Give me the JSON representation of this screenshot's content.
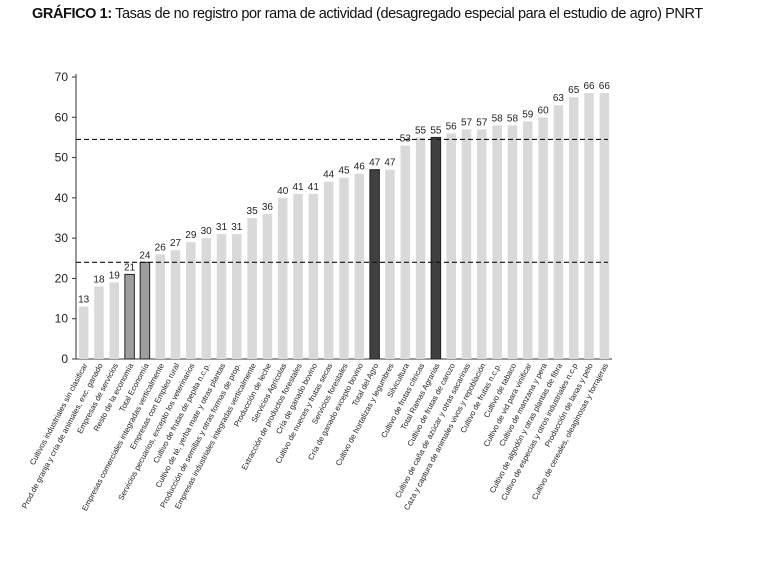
{
  "title": {
    "prefix": "GRÁFICO 1:",
    "text": "Tasas de no registro por rama de actividad (desagregado especial para el estudio de agro) PNRT"
  },
  "chart_data": {
    "type": "bar",
    "ylim": [
      0,
      70
    ],
    "yticks": [
      0,
      10,
      20,
      30,
      40,
      50,
      60,
      70
    ],
    "reference_lines": [
      24,
      54.5
    ],
    "colors": {
      "default": "#d9d9d9",
      "total_economia": "#9e9e9e",
      "agro": "#404040",
      "outline": "#222222"
    },
    "categories": [
      "Cultivos industriales sin clasificar",
      "Prod.de granja y cría de animales, exc. ganado",
      "Empresas de servicios",
      "Resto de la economía",
      "Total Economía",
      "Empresas comerciales integradas verticalmente",
      "Empresas con Empleo rural",
      "Servicios pecuarios, excepto los veterinarios",
      "Cultivo de frutas de pepita n.c.p.",
      "Cultivo de té, yerba mate y otras plantas",
      "Producción de semillas y otras formas de prop.",
      "Empresas industriales integradas verticalmente",
      "Producción de leche",
      "Servicios Agrícolas",
      "Extracción de productos forestales",
      "Cría de ganado bovino",
      "Cultivo de nueces y frutas secas",
      "Servicios forestales",
      "Cría de ganado excepto bovino",
      "Total del Agro",
      "Cultivo de hortalizas y  legumbres",
      "Silvicultura",
      "Cultivo de frutas cítricas",
      "Total Ramas Agrarias",
      "Cultivo de frutas de carozo",
      "Cultivo de caña de azúcar y otras sacarinas",
      "Caza y captura de animales vivos y repoblación",
      "Cultivo de frutas n.c.p.",
      "Cultivo de tabaco",
      "Cultivo de vid para vinificar",
      "Cultivo de manzana y pera",
      "Cultivo de algodón y otras plantas de fibra",
      "Cultivo de especias y otros industriales n.c.p",
      "Producción de lanas y pelo",
      "Cultivo de cereales, oleaginosas y forrajeras"
    ],
    "values": [
      13,
      18,
      19,
      21,
      24,
      26,
      27,
      29,
      30,
      31,
      31,
      35,
      36,
      40,
      41,
      41,
      44,
      45,
      46,
      47,
      47,
      53,
      55,
      55,
      56,
      57,
      57,
      58,
      58,
      59,
      60,
      63,
      65,
      66,
      66
    ],
    "bar_styles": [
      "default",
      "default",
      "default",
      "total_economia",
      "total_economia",
      "default",
      "default",
      "default",
      "default",
      "default",
      "default",
      "default",
      "default",
      "default",
      "default",
      "default",
      "default",
      "default",
      "default",
      "agro",
      "default",
      "default",
      "default",
      "agro",
      "default",
      "default",
      "default",
      "default",
      "default",
      "default",
      "default",
      "default",
      "default",
      "default",
      "default"
    ]
  }
}
